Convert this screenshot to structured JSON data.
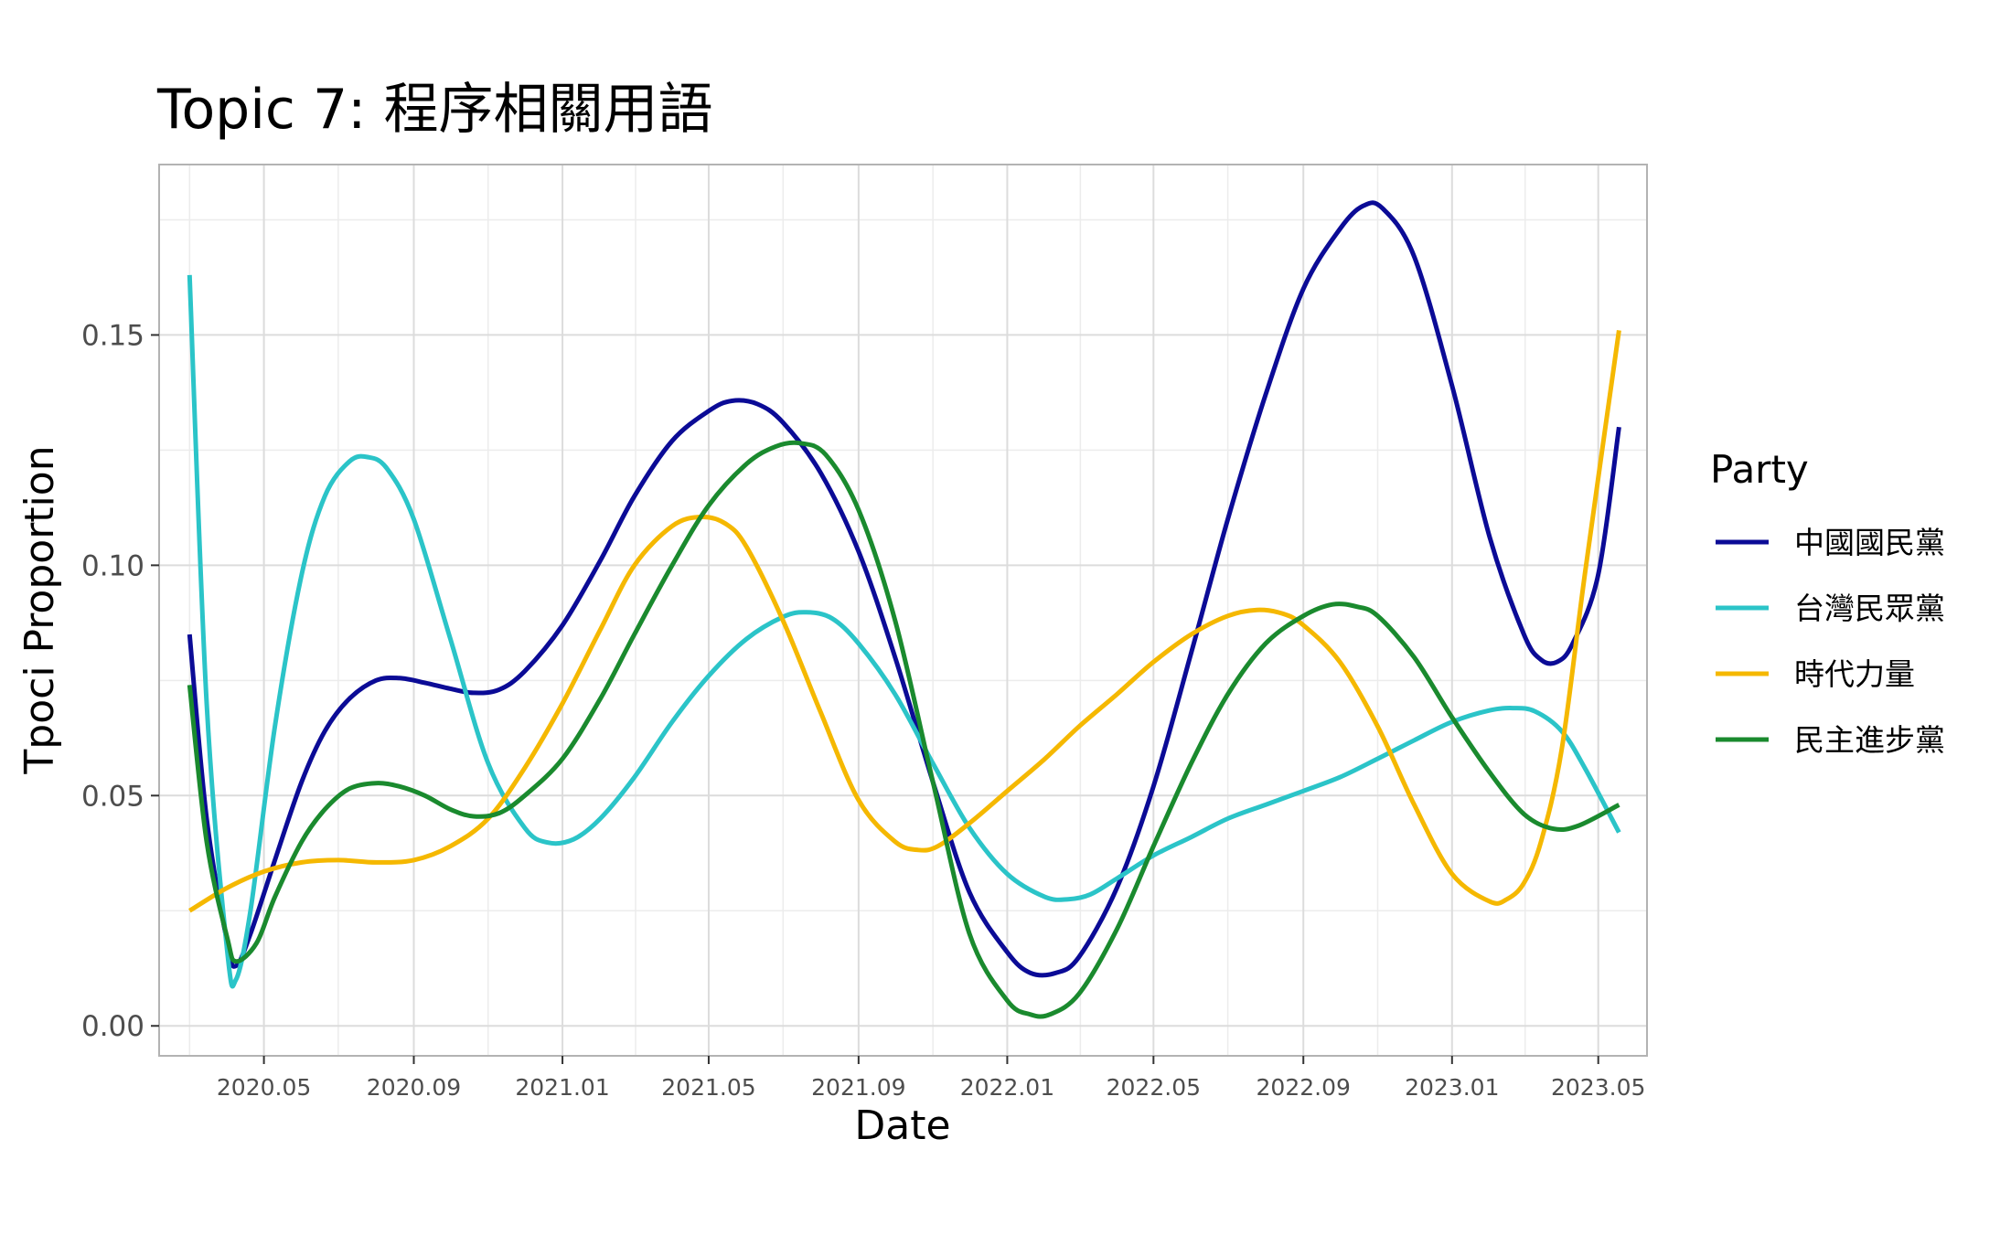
{
  "chart_data": {
    "type": "line",
    "title": "Topic 7: 程序相關用語",
    "xlabel": "Date",
    "ylabel": "Tpoci Proportion",
    "xlim": [
      "2020-02-05",
      "2023-06-10"
    ],
    "ylim": [
      -0.0065,
      0.187
    ],
    "x_ticks": [
      {
        "label": "2020.05",
        "date": "2020-05-01"
      },
      {
        "label": "2020.09",
        "date": "2020-09-01"
      },
      {
        "label": "2021.01",
        "date": "2021-01-01"
      },
      {
        "label": "2021.05",
        "date": "2021-05-01"
      },
      {
        "label": "2021.09",
        "date": "2021-09-01"
      },
      {
        "label": "2022.01",
        "date": "2022-01-01"
      },
      {
        "label": "2022.05",
        "date": "2022-05-01"
      },
      {
        "label": "2022.09",
        "date": "2022-09-01"
      },
      {
        "label": "2023.01",
        "date": "2023-01-01"
      },
      {
        "label": "2023.05",
        "date": "2023-05-01"
      }
    ],
    "y_ticks": [
      {
        "label": "0.00",
        "value": 0
      },
      {
        "label": "0.05",
        "value": 0.05
      },
      {
        "label": "0.10",
        "value": 0.1
      },
      {
        "label": "0.15",
        "value": 0.15
      }
    ],
    "grid": true,
    "legend": {
      "title": "Party",
      "position": "right"
    },
    "series": [
      {
        "name": "中國國民黨",
        "color": "#0b0b96",
        "points": [
          [
            "2020-03-01",
            0.085
          ],
          [
            "2020-03-15",
            0.045
          ],
          [
            "2020-04-01",
            0.018
          ],
          [
            "2020-04-08",
            0.013
          ],
          [
            "2020-04-20",
            0.02
          ],
          [
            "2020-05-10",
            0.036
          ],
          [
            "2020-06-01",
            0.053
          ],
          [
            "2020-06-20",
            0.064
          ],
          [
            "2020-07-10",
            0.071
          ],
          [
            "2020-08-01",
            0.075
          ],
          [
            "2020-08-20",
            0.0755
          ],
          [
            "2020-09-10",
            0.0745
          ],
          [
            "2020-10-01",
            0.0732
          ],
          [
            "2020-10-20",
            0.0723
          ],
          [
            "2020-11-10",
            0.073
          ],
          [
            "2020-12-01",
            0.077
          ],
          [
            "2021-01-01",
            0.087
          ],
          [
            "2021-02-01",
            0.101
          ],
          [
            "2021-03-01",
            0.115
          ],
          [
            "2021-04-01",
            0.127
          ],
          [
            "2021-05-01",
            0.1335
          ],
          [
            "2021-05-20",
            0.1357
          ],
          [
            "2021-06-10",
            0.135
          ],
          [
            "2021-07-01",
            0.131
          ],
          [
            "2021-08-01",
            0.12
          ],
          [
            "2021-09-01",
            0.103
          ],
          [
            "2021-10-01",
            0.08
          ],
          [
            "2021-11-01",
            0.053
          ],
          [
            "2021-12-01",
            0.029
          ],
          [
            "2022-01-01",
            0.016
          ],
          [
            "2022-01-20",
            0.0115
          ],
          [
            "2022-02-10",
            0.0115
          ],
          [
            "2022-03-01",
            0.015
          ],
          [
            "2022-04-01",
            0.03
          ],
          [
            "2022-05-01",
            0.052
          ],
          [
            "2022-06-01",
            0.081
          ],
          [
            "2022-07-01",
            0.11
          ],
          [
            "2022-08-01",
            0.137
          ],
          [
            "2022-09-01",
            0.16
          ],
          [
            "2022-10-01",
            0.173
          ],
          [
            "2022-10-20",
            0.178
          ],
          [
            "2022-11-05",
            0.1775
          ],
          [
            "2022-12-01",
            0.167
          ],
          [
            "2023-01-01",
            0.139
          ],
          [
            "2023-02-01",
            0.106
          ],
          [
            "2023-03-01",
            0.085
          ],
          [
            "2023-03-15",
            0.0795
          ],
          [
            "2023-03-28",
            0.079
          ],
          [
            "2023-04-10",
            0.083
          ],
          [
            "2023-05-01",
            0.098
          ],
          [
            "2023-05-18",
            0.13
          ]
        ]
      },
      {
        "name": "台灣民眾黨",
        "color": "#2bc4c8",
        "points": [
          [
            "2020-03-01",
            0.163
          ],
          [
            "2020-03-15",
            0.07
          ],
          [
            "2020-04-01",
            0.016
          ],
          [
            "2020-04-08",
            0.01
          ],
          [
            "2020-04-20",
            0.025
          ],
          [
            "2020-05-10",
            0.065
          ],
          [
            "2020-06-01",
            0.098
          ],
          [
            "2020-06-20",
            0.115
          ],
          [
            "2020-07-10",
            0.1225
          ],
          [
            "2020-07-25",
            0.1235
          ],
          [
            "2020-08-10",
            0.121
          ],
          [
            "2020-09-01",
            0.11
          ],
          [
            "2020-10-01",
            0.084
          ],
          [
            "2020-11-01",
            0.057
          ],
          [
            "2020-12-01",
            0.043
          ],
          [
            "2020-12-20",
            0.0398
          ],
          [
            "2021-01-10",
            0.0405
          ],
          [
            "2021-02-01",
            0.045
          ],
          [
            "2021-03-01",
            0.054
          ],
          [
            "2021-04-01",
            0.066
          ],
          [
            "2021-05-01",
            0.076
          ],
          [
            "2021-06-01",
            0.084
          ],
          [
            "2021-07-01",
            0.0888
          ],
          [
            "2021-07-20",
            0.0898
          ],
          [
            "2021-08-10",
            0.0885
          ],
          [
            "2021-09-01",
            0.083
          ],
          [
            "2021-10-01",
            0.072
          ],
          [
            "2021-11-01",
            0.057
          ],
          [
            "2021-12-01",
            0.043
          ],
          [
            "2022-01-01",
            0.033
          ],
          [
            "2022-02-01",
            0.028
          ],
          [
            "2022-02-20",
            0.0275
          ],
          [
            "2022-03-10",
            0.0285
          ],
          [
            "2022-04-01",
            0.032
          ],
          [
            "2022-05-01",
            0.037
          ],
          [
            "2022-06-01",
            0.041
          ],
          [
            "2022-07-01",
            0.045
          ],
          [
            "2022-08-01",
            0.048
          ],
          [
            "2022-09-01",
            0.051
          ],
          [
            "2022-10-01",
            0.054
          ],
          [
            "2022-11-01",
            0.058
          ],
          [
            "2022-12-01",
            0.062
          ],
          [
            "2023-01-01",
            0.066
          ],
          [
            "2023-02-01",
            0.0685
          ],
          [
            "2023-02-20",
            0.069
          ],
          [
            "2023-03-10",
            0.0683
          ],
          [
            "2023-04-01",
            0.064
          ],
          [
            "2023-04-20",
            0.056
          ],
          [
            "2023-05-18",
            0.042
          ]
        ]
      },
      {
        "name": "時代力量",
        "color": "#f5b800",
        "points": [
          [
            "2020-03-01",
            0.025
          ],
          [
            "2020-04-01",
            0.03
          ],
          [
            "2020-05-01",
            0.0335
          ],
          [
            "2020-06-01",
            0.0355
          ],
          [
            "2020-07-01",
            0.036
          ],
          [
            "2020-08-01",
            0.0355
          ],
          [
            "2020-09-01",
            0.036
          ],
          [
            "2020-10-01",
            0.039
          ],
          [
            "2020-11-01",
            0.045
          ],
          [
            "2020-12-01",
            0.056
          ],
          [
            "2021-01-01",
            0.07
          ],
          [
            "2021-02-01",
            0.086
          ],
          [
            "2021-03-01",
            0.1
          ],
          [
            "2021-04-01",
            0.1085
          ],
          [
            "2021-04-25",
            0.1105
          ],
          [
            "2021-05-15",
            0.109
          ],
          [
            "2021-06-01",
            0.104
          ],
          [
            "2021-07-01",
            0.088
          ],
          [
            "2021-08-01",
            0.068
          ],
          [
            "2021-09-01",
            0.049
          ],
          [
            "2021-10-01",
            0.04
          ],
          [
            "2021-10-20",
            0.0382
          ],
          [
            "2021-11-05",
            0.039
          ],
          [
            "2021-12-01",
            0.044
          ],
          [
            "2022-01-01",
            0.051
          ],
          [
            "2022-02-01",
            0.058
          ],
          [
            "2022-03-01",
            0.065
          ],
          [
            "2022-04-01",
            0.072
          ],
          [
            "2022-05-01",
            0.079
          ],
          [
            "2022-06-01",
            0.085
          ],
          [
            "2022-07-01",
            0.089
          ],
          [
            "2022-07-25",
            0.0903
          ],
          [
            "2022-08-15",
            0.0895
          ],
          [
            "2022-09-01",
            0.087
          ],
          [
            "2022-10-01",
            0.079
          ],
          [
            "2022-11-01",
            0.065
          ],
          [
            "2022-12-01",
            0.048
          ],
          [
            "2023-01-01",
            0.033
          ],
          [
            "2023-02-01",
            0.027
          ],
          [
            "2023-02-15",
            0.0275
          ],
          [
            "2023-03-01",
            0.031
          ],
          [
            "2023-03-15",
            0.04
          ],
          [
            "2023-04-01",
            0.06
          ],
          [
            "2023-04-20",
            0.098
          ],
          [
            "2023-05-18",
            0.151
          ]
        ]
      },
      {
        "name": "民主進步黨",
        "color": "#1a8a2e",
        "points": [
          [
            "2020-03-01",
            0.074
          ],
          [
            "2020-03-15",
            0.04
          ],
          [
            "2020-04-01",
            0.019
          ],
          [
            "2020-04-08",
            0.014
          ],
          [
            "2020-04-25",
            0.018
          ],
          [
            "2020-05-10",
            0.028
          ],
          [
            "2020-06-01",
            0.04
          ],
          [
            "2020-06-20",
            0.047
          ],
          [
            "2020-07-10",
            0.0515
          ],
          [
            "2020-08-01",
            0.0527
          ],
          [
            "2020-08-20",
            0.052
          ],
          [
            "2020-09-10",
            0.05
          ],
          [
            "2020-10-01",
            0.047
          ],
          [
            "2020-10-20",
            0.0455
          ],
          [
            "2020-11-10",
            0.0462
          ],
          [
            "2020-12-01",
            0.05
          ],
          [
            "2021-01-01",
            0.058
          ],
          [
            "2021-02-01",
            0.071
          ],
          [
            "2021-03-01",
            0.085
          ],
          [
            "2021-04-01",
            0.1
          ],
          [
            "2021-05-01",
            0.113
          ],
          [
            "2021-06-01",
            0.122
          ],
          [
            "2021-06-25",
            0.1258
          ],
          [
            "2021-07-15",
            0.1265
          ],
          [
            "2021-08-05",
            0.124
          ],
          [
            "2021-09-01",
            0.112
          ],
          [
            "2021-10-01",
            0.088
          ],
          [
            "2021-11-01",
            0.053
          ],
          [
            "2021-12-01",
            0.02
          ],
          [
            "2022-01-01",
            0.0055
          ],
          [
            "2022-01-20",
            0.0025
          ],
          [
            "2022-02-05",
            0.0025
          ],
          [
            "2022-03-01",
            0.007
          ],
          [
            "2022-04-01",
            0.021
          ],
          [
            "2022-05-01",
            0.039
          ],
          [
            "2022-06-01",
            0.057
          ],
          [
            "2022-07-01",
            0.072
          ],
          [
            "2022-08-01",
            0.083
          ],
          [
            "2022-09-01",
            0.089
          ],
          [
            "2022-09-25",
            0.0915
          ],
          [
            "2022-10-15",
            0.091
          ],
          [
            "2022-11-01",
            0.089
          ],
          [
            "2022-12-01",
            0.08
          ],
          [
            "2023-01-01",
            0.067
          ],
          [
            "2023-02-01",
            0.055
          ],
          [
            "2023-03-01",
            0.046
          ],
          [
            "2023-03-25",
            0.0428
          ],
          [
            "2023-04-15",
            0.0435
          ],
          [
            "2023-05-18",
            0.048
          ]
        ]
      }
    ]
  }
}
